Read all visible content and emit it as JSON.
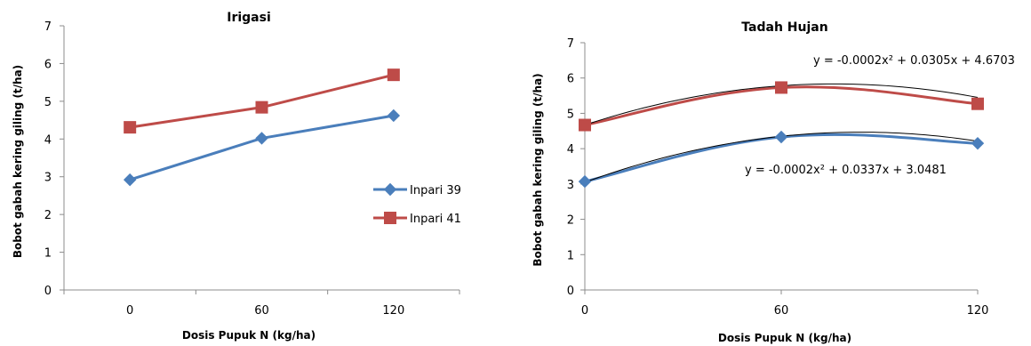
{
  "chart_data": [
    {
      "type": "line",
      "title": "Irigasi",
      "xlabel": "Dosis Pupuk N (kg/ha)",
      "ylabel": "Bobot gabah kering giling (t/ha)",
      "categories": [
        "0",
        "60",
        "120"
      ],
      "ylim": [
        0,
        7
      ],
      "yticks": [
        "0",
        "1",
        "2",
        "3",
        "4",
        "5",
        "6",
        "7"
      ],
      "grid": false,
      "legend_position": "right",
      "series": [
        {
          "name": "Inpari 39",
          "values": [
            2.92,
            4.02,
            4.62
          ],
          "color": "#4a7ebb",
          "marker": "diamond"
        },
        {
          "name": "Inpari 41",
          "values": [
            4.31,
            4.84,
            5.7
          ],
          "color": "#be4b48",
          "marker": "square"
        }
      ]
    },
    {
      "type": "line",
      "title": "Tadah Hujan",
      "xlabel": "Dosis Pupuk N (kg/ha)",
      "ylabel": "Bobot gabah kering giling (t/ha)",
      "x": [
        0,
        60,
        120
      ],
      "xticks": [
        "0",
        "60",
        "120"
      ],
      "ylim": [
        0,
        7
      ],
      "yticks": [
        "0",
        "1",
        "2",
        "3",
        "4",
        "5",
        "6",
        "7"
      ],
      "grid": false,
      "series": [
        {
          "name": "Inpari 39",
          "values": [
            3.07,
            4.33,
            4.15
          ],
          "color": "#4a7ebb",
          "marker": "diamond",
          "smooth": true
        },
        {
          "name": "Inpari 41",
          "values": [
            4.67,
            5.73,
            5.27
          ],
          "color": "#be4b48",
          "marker": "square",
          "smooth": true
        }
      ],
      "trendlines": [
        {
          "series": "Inpari 41",
          "a": -0.0002,
          "b": 0.0305,
          "c": 4.6703,
          "label": "y = -0.0002x² + 0.0305x + 4.6703"
        },
        {
          "series": "Inpari 39",
          "a": -0.0002,
          "b": 0.0337,
          "c": 3.0481,
          "label": "y = -0.0002x² + 0.0337x + 3.0481"
        }
      ]
    }
  ]
}
